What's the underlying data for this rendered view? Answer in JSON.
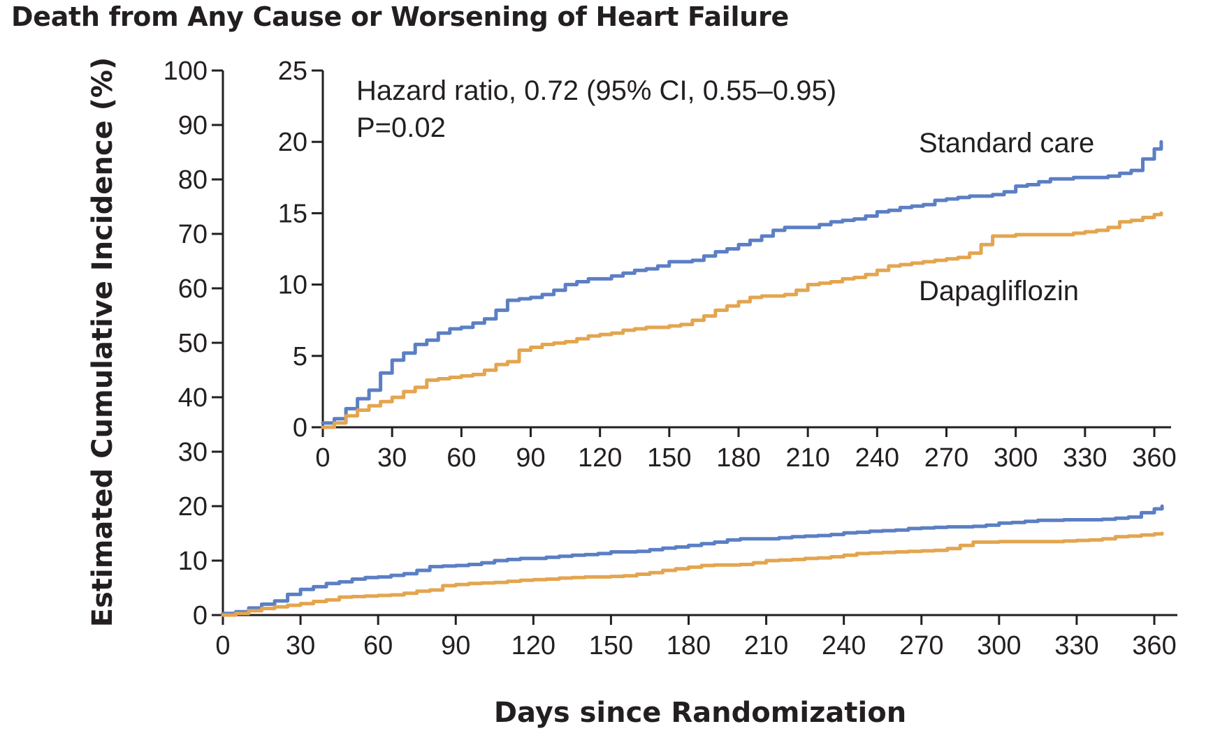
{
  "chart_data": {
    "type": "line",
    "title": "Death from Any Cause or Worsening of Heart Failure",
    "xlabel": "Days since Randomization",
    "ylabel": "Estimated Cumulative Incidence (%)",
    "xlim": [
      0,
      360
    ],
    "ylim": [
      0,
      100
    ],
    "xticks": [
      "0",
      "30",
      "60",
      "90",
      "120",
      "150",
      "180",
      "210",
      "240",
      "270",
      "300",
      "330",
      "360"
    ],
    "yticks": [
      "0",
      "10",
      "20",
      "30",
      "40",
      "50",
      "60",
      "70",
      "80",
      "90",
      "100"
    ],
    "colors": {
      "standard_care": "#5b7fc4",
      "dapagliflozin": "#e3a54f",
      "axis": "#231f20"
    },
    "series": [
      {
        "name": "Standard care",
        "color": "#5b7fc4",
        "x": [
          0,
          5,
          10,
          15,
          20,
          25,
          30,
          35,
          40,
          45,
          50,
          55,
          60,
          65,
          70,
          75,
          80,
          85,
          90,
          95,
          100,
          105,
          110,
          115,
          120,
          125,
          130,
          135,
          140,
          145,
          150,
          155,
          160,
          165,
          170,
          175,
          180,
          185,
          190,
          195,
          200,
          205,
          210,
          215,
          220,
          225,
          230,
          235,
          240,
          245,
          250,
          255,
          260,
          265,
          270,
          275,
          280,
          285,
          290,
          295,
          300,
          305,
          310,
          315,
          320,
          325,
          330,
          335,
          340,
          345,
          350,
          355,
          360,
          363
        ],
        "values": [
          0.3,
          0.6,
          1.3,
          2.0,
          2.6,
          3.8,
          4.7,
          5.2,
          5.8,
          6.1,
          6.6,
          6.9,
          7.0,
          7.3,
          7.6,
          8.2,
          8.9,
          9.0,
          9.1,
          9.3,
          9.6,
          10.0,
          10.2,
          10.4,
          10.4,
          10.6,
          10.8,
          11.0,
          11.1,
          11.3,
          11.6,
          11.6,
          11.7,
          12.0,
          12.3,
          12.5,
          12.8,
          13.1,
          13.4,
          13.8,
          14.0,
          14.0,
          14.0,
          14.2,
          14.4,
          14.5,
          14.6,
          14.8,
          15.1,
          15.2,
          15.4,
          15.5,
          15.6,
          15.9,
          16.0,
          16.1,
          16.2,
          16.2,
          16.3,
          16.5,
          16.9,
          17.0,
          17.2,
          17.4,
          17.4,
          17.5,
          17.5,
          17.5,
          17.6,
          17.8,
          18.0,
          18.8,
          19.5,
          20.0
        ]
      },
      {
        "name": "Dapagliflozin",
        "color": "#e3a54f",
        "x": [
          0,
          5,
          10,
          15,
          20,
          25,
          30,
          35,
          40,
          45,
          50,
          55,
          60,
          65,
          70,
          75,
          80,
          85,
          90,
          95,
          100,
          105,
          110,
          115,
          120,
          125,
          130,
          135,
          140,
          145,
          150,
          155,
          160,
          165,
          170,
          175,
          180,
          185,
          190,
          195,
          200,
          205,
          210,
          215,
          220,
          225,
          230,
          235,
          240,
          245,
          250,
          255,
          260,
          265,
          270,
          275,
          280,
          285,
          290,
          295,
          300,
          305,
          310,
          315,
          320,
          325,
          330,
          335,
          340,
          345,
          350,
          355,
          360,
          363
        ],
        "values": [
          0.0,
          0.3,
          0.8,
          1.2,
          1.5,
          1.8,
          2.1,
          2.5,
          2.8,
          3.3,
          3.4,
          3.5,
          3.6,
          3.7,
          4.0,
          4.4,
          4.6,
          5.4,
          5.6,
          5.8,
          5.9,
          6.0,
          6.2,
          6.4,
          6.5,
          6.6,
          6.8,
          6.9,
          7.0,
          7.0,
          7.1,
          7.2,
          7.5,
          7.8,
          8.2,
          8.5,
          8.8,
          9.1,
          9.2,
          9.2,
          9.3,
          9.6,
          10.0,
          10.1,
          10.2,
          10.4,
          10.5,
          10.7,
          11.0,
          11.3,
          11.4,
          11.5,
          11.6,
          11.7,
          11.8,
          11.9,
          12.2,
          12.8,
          13.4,
          13.4,
          13.5,
          13.5,
          13.5,
          13.5,
          13.5,
          13.6,
          13.7,
          13.8,
          14.0,
          14.4,
          14.5,
          14.7,
          14.9,
          15.0
        ]
      }
    ],
    "inset": {
      "xlim": [
        0,
        360
      ],
      "ylim": [
        0,
        25
      ],
      "xticks": [
        "0",
        "30",
        "60",
        "90",
        "120",
        "150",
        "180",
        "210",
        "240",
        "270",
        "300",
        "330",
        "360"
      ],
      "yticks": [
        "0",
        "5",
        "10",
        "15",
        "20",
        "25"
      ],
      "hazard_text": "Hazard ratio, 0.72 (95% CI, 0.55–0.95)",
      "p_text": "P=0.02",
      "series_labels": [
        "Standard care",
        "Dapagliflozin"
      ]
    }
  }
}
